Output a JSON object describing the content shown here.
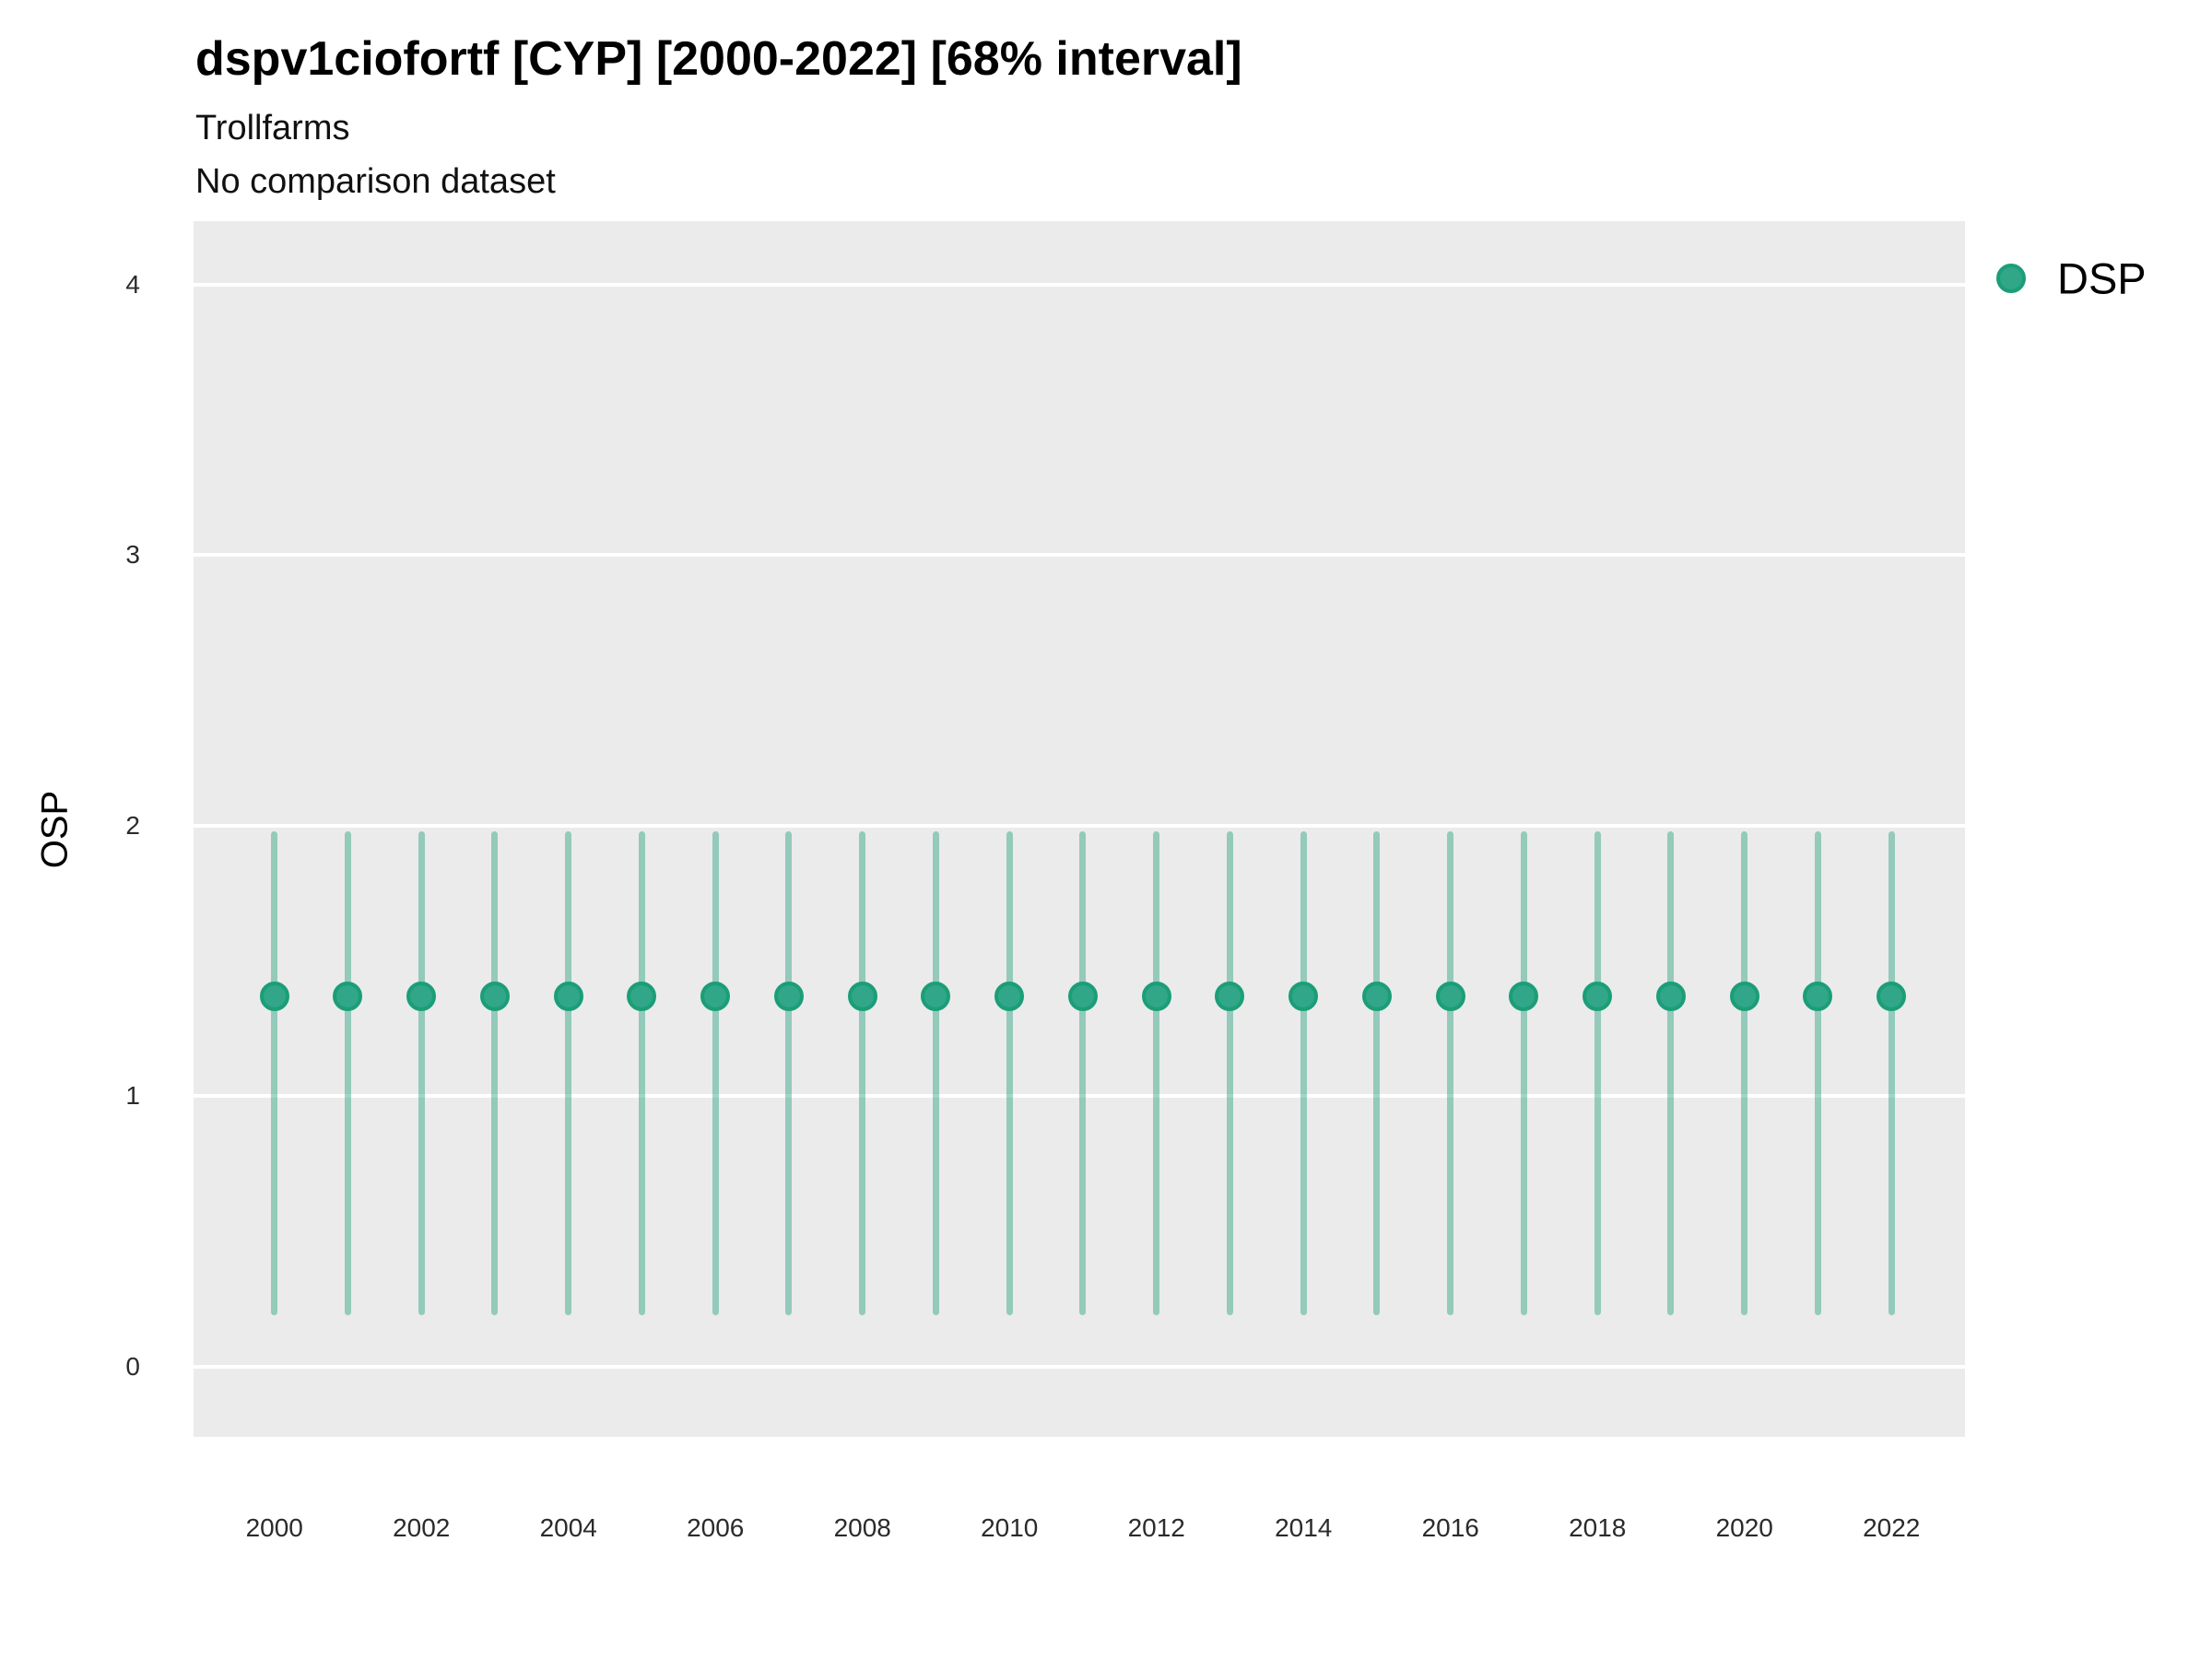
{
  "header": {
    "title": "dspv1ciofortf [CYP] [2000-2022] [68% interval]",
    "subtitle": "Trollfarms",
    "note": "No comparison dataset"
  },
  "legend": {
    "label": "DSP",
    "position": "right-top"
  },
  "colors": {
    "panel_background": "#ebebeb",
    "gridline": "#ffffff",
    "point_fill": "#31a689",
    "point_border": "#1b9e77",
    "interval_bar": "rgba(27,158,119,0.42)",
    "tick_text": "#2b2b2b",
    "title_text": "#000000"
  },
  "chart_data": {
    "type": "scatter",
    "title": "dspv1ciofortf [CYP] [2000-2022] [68% interval]",
    "subtitle": "Trollfarms",
    "annotation": "No comparison dataset",
    "xlabel": "",
    "ylabel": "OSP",
    "interval": "68% interval",
    "x": [
      2000,
      2001,
      2002,
      2003,
      2004,
      2005,
      2006,
      2007,
      2008,
      2009,
      2010,
      2011,
      2012,
      2013,
      2014,
      2015,
      2016,
      2017,
      2018,
      2019,
      2020,
      2021,
      2022
    ],
    "series": [
      {
        "name": "DSP",
        "values": [
          1.37,
          1.37,
          1.37,
          1.37,
          1.37,
          1.37,
          1.37,
          1.37,
          1.37,
          1.37,
          1.37,
          1.37,
          1.37,
          1.37,
          1.37,
          1.37,
          1.37,
          1.37,
          1.37,
          1.37,
          1.37,
          1.37,
          1.37
        ],
        "interval_low": [
          0.19,
          0.19,
          0.19,
          0.19,
          0.19,
          0.19,
          0.19,
          0.19,
          0.19,
          0.19,
          0.19,
          0.19,
          0.19,
          0.19,
          0.19,
          0.19,
          0.19,
          0.19,
          0.19,
          0.19,
          0.19,
          0.19,
          0.19
        ],
        "interval_high": [
          1.98,
          1.98,
          1.98,
          1.98,
          1.98,
          1.98,
          1.98,
          1.98,
          1.98,
          1.98,
          1.98,
          1.98,
          1.98,
          1.98,
          1.98,
          1.98,
          1.98,
          1.98,
          1.98,
          1.98,
          1.98,
          1.98,
          1.98
        ]
      }
    ],
    "yticks": [
      0,
      1,
      2,
      3,
      4
    ],
    "xticks": [
      2000,
      2002,
      2004,
      2006,
      2008,
      2010,
      2012,
      2014,
      2016,
      2018,
      2020,
      2022
    ],
    "ylim": [
      -0.26,
      4.235
    ],
    "xlim": [
      1998.9,
      2023.0
    ],
    "grid": "major horizontal, white on gray panel",
    "legend_position": "right-top"
  }
}
